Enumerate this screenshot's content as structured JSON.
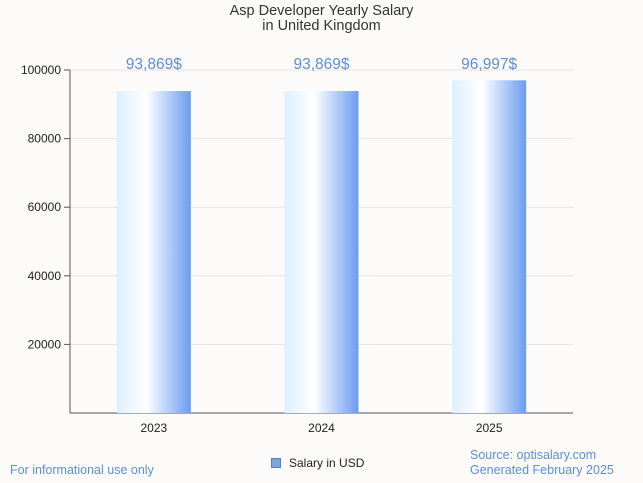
{
  "chart_data": {
    "type": "bar",
    "title": "Asp Developer Yearly Salary",
    "subtitle": "in United Kingdom",
    "categories": [
      "2023",
      "2024",
      "2025"
    ],
    "series": [
      {
        "name": "Salary in USD",
        "values": [
          93869,
          93869,
          96997
        ],
        "data_labels": [
          "93,869$",
          "93,869$",
          "96,997$"
        ]
      }
    ],
    "ylim": [
      0,
      100000
    ],
    "yticks": [
      "20000",
      "40000",
      "60000",
      "80000",
      "100000"
    ],
    "grid": true,
    "legend_placement": "bottom-center"
  },
  "colors": {
    "bar_light": "#dcefff",
    "bar_mid": "#ffffff",
    "bar_dark": "#6a9cf0",
    "data_label": "#5b8fd6",
    "grid": "#e3e3e3",
    "axis": "#555555",
    "legend_swatch": "#7ba3e0"
  },
  "footer": {
    "disclaimer": "For informational use only",
    "source": "Source: optisalary.com",
    "generated": "Generated February 2025"
  }
}
